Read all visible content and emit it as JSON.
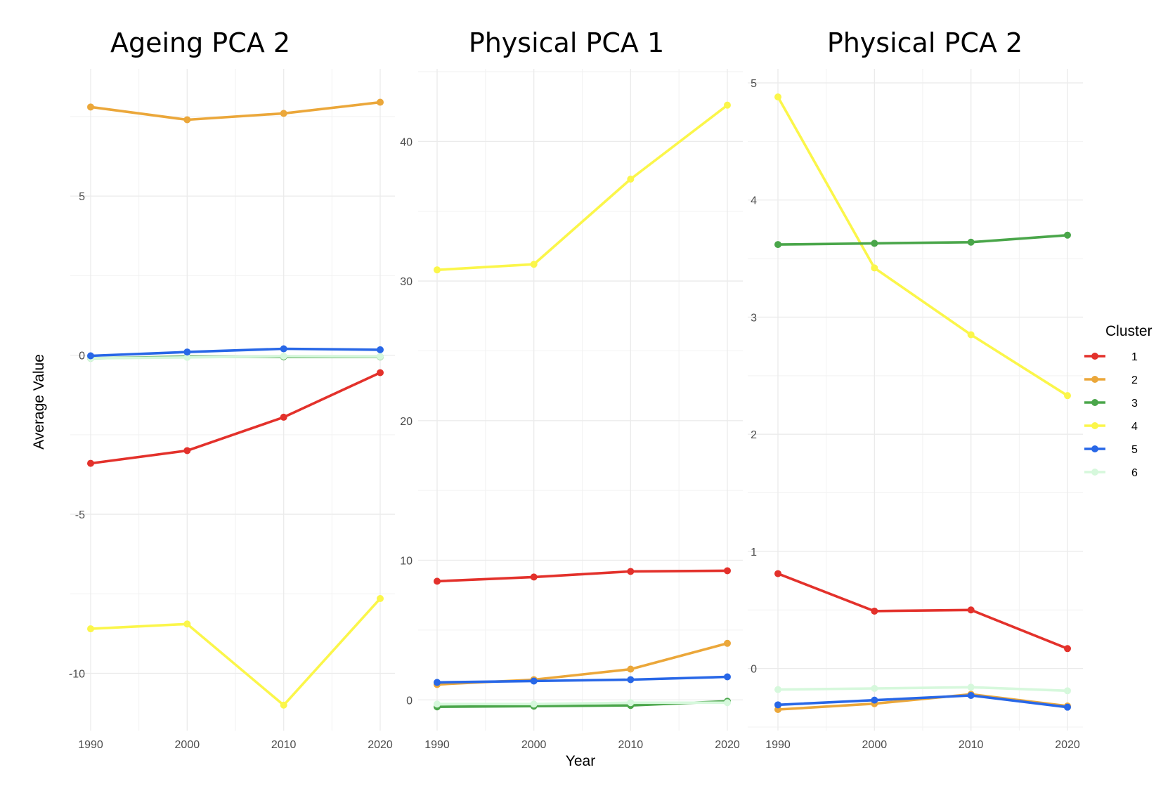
{
  "chart_data": [
    {
      "type": "line",
      "title": "Ageing PCA 2",
      "x": [
        1990,
        2000,
        2010,
        2020
      ],
      "xticks": [
        "1990",
        "2000",
        "2010",
        "2020"
      ],
      "ylim": [
        -11.8,
        9.0
      ],
      "yticks": [
        5,
        0,
        -5,
        -10
      ],
      "ytick_labels": [
        "5",
        "0",
        "-5",
        "-10"
      ],
      "grid": true,
      "series": [
        {
          "name": "1",
          "values": [
            -3.4,
            -3.0,
            -1.95,
            -0.55
          ]
        },
        {
          "name": "2",
          "values": [
            7.8,
            7.4,
            7.6,
            7.95
          ]
        },
        {
          "name": "3",
          "values": [
            -0.1,
            -0.05,
            -0.05,
            -0.05
          ]
        },
        {
          "name": "4",
          "values": [
            -8.6,
            -8.45,
            -11.0,
            -7.65
          ]
        },
        {
          "name": "5",
          "values": [
            -0.02,
            0.1,
            0.2,
            0.17
          ]
        },
        {
          "name": "6",
          "values": [
            -0.1,
            -0.07,
            -0.03,
            -0.04
          ]
        }
      ]
    },
    {
      "type": "line",
      "title": "Physical PCA 1",
      "x": [
        1990,
        2000,
        2010,
        2020
      ],
      "xticks": [
        "1990",
        "2000",
        "2010",
        "2020"
      ],
      "ylim": [
        -2.2,
        45.2
      ],
      "yticks": [
        0,
        10,
        20,
        30,
        40
      ],
      "ytick_labels": [
        "0",
        "10",
        "20",
        "30",
        "40"
      ],
      "grid": true,
      "series": [
        {
          "name": "1",
          "values": [
            8.5,
            8.8,
            9.2,
            9.25
          ]
        },
        {
          "name": "2",
          "values": [
            1.1,
            1.45,
            2.2,
            4.05
          ]
        },
        {
          "name": "3",
          "values": [
            -0.5,
            -0.45,
            -0.4,
            -0.1
          ]
        },
        {
          "name": "4",
          "values": [
            30.8,
            31.2,
            37.3,
            42.6
          ]
        },
        {
          "name": "5",
          "values": [
            1.25,
            1.35,
            1.45,
            1.65
          ]
        },
        {
          "name": "6",
          "values": [
            -0.3,
            -0.3,
            -0.2,
            -0.2
          ]
        }
      ]
    },
    {
      "type": "line",
      "title": "Physical PCA 2",
      "x": [
        1990,
        2000,
        2010,
        2020
      ],
      "xticks": [
        "1990",
        "2000",
        "2010",
        "2020"
      ],
      "ylim": [
        -0.53,
        5.12
      ],
      "yticks": [
        0,
        1,
        2,
        3,
        4,
        5
      ],
      "ytick_labels": [
        "0",
        "1",
        "2",
        "3",
        "4",
        "5"
      ],
      "grid": true,
      "series": [
        {
          "name": "1",
          "values": [
            0.81,
            0.49,
            0.5,
            0.17
          ]
        },
        {
          "name": "2",
          "values": [
            -0.35,
            -0.3,
            -0.22,
            -0.32
          ]
        },
        {
          "name": "3",
          "values": [
            3.62,
            3.63,
            3.64,
            3.7
          ]
        },
        {
          "name": "4",
          "values": [
            4.88,
            3.42,
            2.85,
            2.33
          ]
        },
        {
          "name": "5",
          "values": [
            -0.31,
            -0.27,
            -0.23,
            -0.33
          ]
        },
        {
          "name": "6",
          "values": [
            -0.18,
            -0.17,
            -0.16,
            -0.19
          ]
        }
      ]
    }
  ],
  "x_axis_title": "Year",
  "y_axis_title": "Average Value",
  "legend": {
    "title": "Cluster",
    "placement": "right",
    "entries": [
      {
        "label": "1",
        "color": "#e3312b"
      },
      {
        "label": "2",
        "color": "#eba73a"
      },
      {
        "label": "3",
        "color": "#4aa64a"
      },
      {
        "label": "4",
        "color": "#fbf64a"
      },
      {
        "label": "5",
        "color": "#2867e7"
      },
      {
        "label": "6",
        "color": "#d6f8dc"
      }
    ]
  }
}
